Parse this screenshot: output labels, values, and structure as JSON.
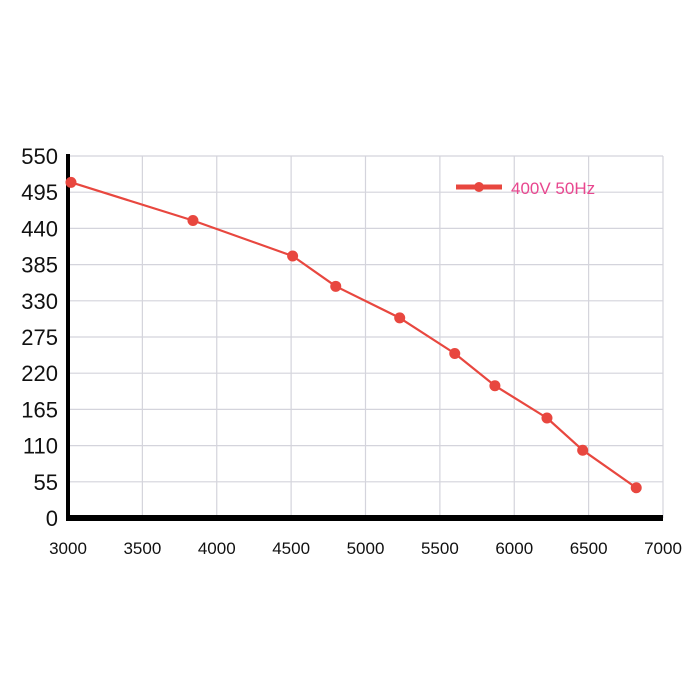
{
  "chart_data": {
    "type": "line",
    "title": "",
    "xlabel": "",
    "ylabel": "",
    "xlim": [
      3000,
      7000
    ],
    "ylim": [
      0,
      550
    ],
    "x_ticks": [
      "3000",
      "3500",
      "4000",
      "4500",
      "5000",
      "5500",
      "6000",
      "6500",
      "7000"
    ],
    "y_ticks": [
      "550",
      "495",
      "440",
      "385",
      "330",
      "275",
      "220",
      "165",
      "110",
      "55",
      "0"
    ],
    "grid": true,
    "legend_position": "top-right",
    "series": [
      {
        "name": "400V 50Hz",
        "color": "#e8473f",
        "x": [
          3020,
          3840,
          4510,
          4800,
          5230,
          5600,
          5870,
          6220,
          6460,
          6820
        ],
        "y": [
          510,
          452,
          398,
          352,
          304,
          250,
          201,
          152,
          103,
          46
        ]
      }
    ],
    "legend_text_color": "#e8478f"
  }
}
